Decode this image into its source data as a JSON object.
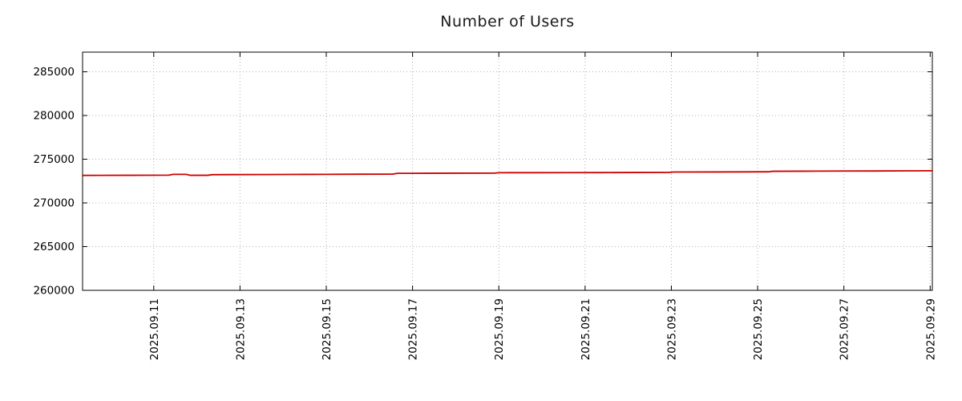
{
  "chart_data": {
    "type": "line",
    "title": "Number of Users",
    "xlabel": "",
    "ylabel": "",
    "series_name": "Number of Users",
    "series_color": "#cc0000",
    "grid": true,
    "legend": "none",
    "x_unit": "days since 2025.09.09",
    "xlim": [
      0.35,
      20.05
    ],
    "ylim": [
      260000,
      287250
    ],
    "y_ticks": [
      {
        "value": 260000,
        "label": "260000"
      },
      {
        "value": 265000,
        "label": "265000"
      },
      {
        "value": 270000,
        "label": "270000"
      },
      {
        "value": 275000,
        "label": "275000"
      },
      {
        "value": 280000,
        "label": "280000"
      },
      {
        "value": 285000,
        "label": "285000"
      }
    ],
    "x_ticks": [
      {
        "day": 2,
        "label": "2025.09.11"
      },
      {
        "day": 4,
        "label": "2025.09.13"
      },
      {
        "day": 6,
        "label": "2025.09.15"
      },
      {
        "day": 8,
        "label": "2025.09.17"
      },
      {
        "day": 10,
        "label": "2025.09.19"
      },
      {
        "day": 12,
        "label": "2025.09.21"
      },
      {
        "day": 14,
        "label": "2025.09.23"
      },
      {
        "day": 16,
        "label": "2025.09.25"
      },
      {
        "day": 18,
        "label": "2025.09.27"
      },
      {
        "day": 20,
        "label": "2025.09.29"
      }
    ],
    "points": [
      [
        0.35,
        273150
      ],
      [
        0.8,
        273155
      ],
      [
        1.4,
        273160
      ],
      [
        2.0,
        273165
      ],
      [
        2.35,
        273180
      ],
      [
        2.45,
        273270
      ],
      [
        2.75,
        273270
      ],
      [
        2.85,
        273160
      ],
      [
        3.25,
        273160
      ],
      [
        3.35,
        273230
      ],
      [
        3.8,
        273240
      ],
      [
        4.5,
        273250
      ],
      [
        5.2,
        273260
      ],
      [
        6.0,
        273270
      ],
      [
        6.8,
        273285
      ],
      [
        7.55,
        273300
      ],
      [
        7.65,
        273385
      ],
      [
        8.3,
        273390
      ],
      [
        9.0,
        273400
      ],
      [
        9.9,
        273405
      ],
      [
        10.0,
        273455
      ],
      [
        10.8,
        273460
      ],
      [
        11.6,
        273465
      ],
      [
        12.4,
        273470
      ],
      [
        13.2,
        273480
      ],
      [
        13.95,
        273485
      ],
      [
        14.05,
        273535
      ],
      [
        14.9,
        273540
      ],
      [
        15.7,
        273550
      ],
      [
        16.25,
        273560
      ],
      [
        16.35,
        273620
      ],
      [
        17.1,
        273630
      ],
      [
        17.9,
        273645
      ],
      [
        18.7,
        273655
      ],
      [
        19.5,
        273670
      ],
      [
        20.05,
        273680
      ]
    ],
    "plot_style": {
      "border_color": "#000000",
      "grid_color": "#b0b0b0",
      "grid_dash": "1,3",
      "tick_length": 6,
      "line_width": 1.8
    }
  }
}
